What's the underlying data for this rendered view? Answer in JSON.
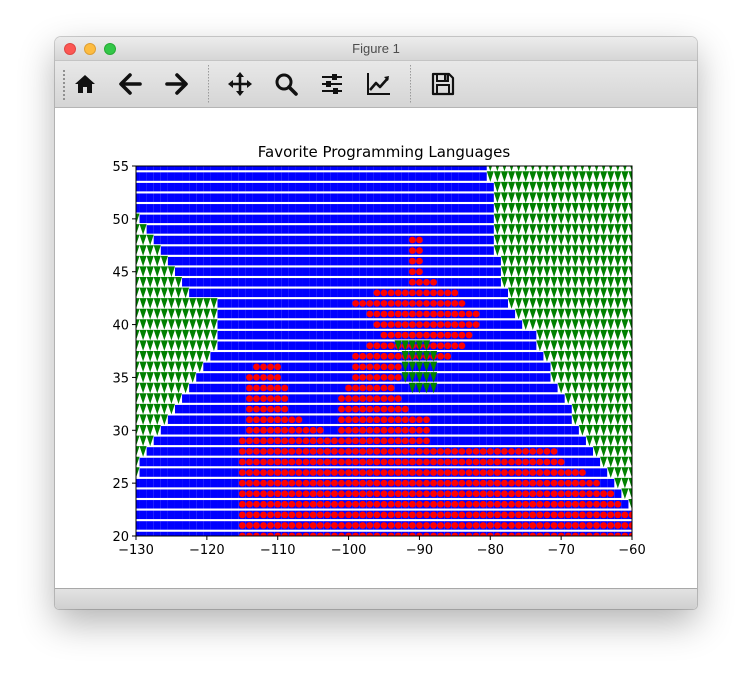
{
  "window": {
    "title": "Figure 1"
  },
  "toolbar": {
    "tools": [
      {
        "icon": "home-icon",
        "tooltip": "Reset original view"
      },
      {
        "icon": "back-arrow-icon",
        "tooltip": "Back to previous view"
      },
      {
        "icon": "forward-arrow-icon",
        "tooltip": "Forward to next view"
      },
      {
        "icon": "pan-move-icon",
        "tooltip": "Pan axes"
      },
      {
        "icon": "zoom-magnifier-icon",
        "tooltip": "Zoom to rectangle"
      },
      {
        "icon": "configure-subplots-icon",
        "tooltip": "Configure subplots"
      },
      {
        "icon": "edit-axes-icon",
        "tooltip": "Edit axis, curve and image parameters"
      },
      {
        "icon": "save-floppy-icon",
        "tooltip": "Save the figure"
      }
    ]
  },
  "colors": {
    "blue": "#0000ff",
    "red": "#ff0000",
    "green": "#008000"
  },
  "chart_data": {
    "type": "scatter",
    "title": "Favorite Programming Languages",
    "xlabel": "",
    "ylabel": "",
    "xlim": [
      -130,
      -60
    ],
    "ylim": [
      20,
      55
    ],
    "xticks": [
      -130,
      -120,
      -110,
      -100,
      -90,
      -80,
      -70,
      -60
    ],
    "yticks": [
      20,
      25,
      30,
      35,
      40,
      45,
      50,
      55
    ],
    "xtick_labels": [
      "−130",
      "−120",
      "−110",
      "−100",
      "−90",
      "−80",
      "−70",
      "−60"
    ],
    "ytick_labels": [
      "20",
      "25",
      "30",
      "35",
      "40",
      "45",
      "50",
      "55"
    ],
    "grid": false,
    "legend": null,
    "markers": {
      "blue": "square",
      "red": "circle",
      "green": "triangle-down"
    },
    "grid_step": 1,
    "description_of_layout": "dense grid classification map of three languages across longitude/latitude",
    "regions": [
      {
        "color": "blue",
        "rows": [
          {
            "y": 55,
            "x": [
              -130,
              -81
            ]
          },
          {
            "y": 54,
            "x": [
              -130,
              -81
            ]
          },
          {
            "y": 53,
            "x": [
              -130,
              -80
            ]
          },
          {
            "y": 52,
            "x": [
              -130,
              -80
            ]
          },
          {
            "y": 51,
            "x": [
              -130,
              -80
            ]
          },
          {
            "y": 50,
            "x": [
              -129,
              -80
            ]
          },
          {
            "y": 49,
            "x": [
              -128,
              -80
            ]
          },
          {
            "y": 48,
            "x": [
              -127,
              -80
            ]
          },
          {
            "y": 47,
            "x": [
              -126,
              -80
            ]
          },
          {
            "y": 46,
            "x": [
              -125,
              -79
            ]
          },
          {
            "y": 45,
            "x": [
              -124,
              -79
            ]
          },
          {
            "y": 44,
            "x": [
              -123,
              -79
            ]
          },
          {
            "y": 43,
            "x": [
              -122,
              -78
            ]
          },
          {
            "y": 42,
            "x": [
              -118,
              -78
            ]
          },
          {
            "y": 41,
            "x": [
              -118,
              -77
            ]
          },
          {
            "y": 40,
            "x": [
              -118,
              -76
            ]
          },
          {
            "y": 39,
            "x": [
              -118,
              -74
            ]
          },
          {
            "y": 38,
            "x": [
              -118,
              -74
            ]
          },
          {
            "y": 37,
            "x": [
              -119,
              -73
            ]
          },
          {
            "y": 36,
            "x": [
              -120,
              -72
            ]
          },
          {
            "y": 35,
            "x": [
              -121,
              -72
            ]
          },
          {
            "y": 34,
            "x": [
              -122,
              -71
            ]
          },
          {
            "y": 33,
            "x": [
              -123,
              -70
            ]
          },
          {
            "y": 32,
            "x": [
              -124,
              -69
            ]
          },
          {
            "y": 31,
            "x": [
              -125,
              -69
            ]
          },
          {
            "y": 30,
            "x": [
              -126,
              -68
            ]
          },
          {
            "y": 29,
            "x": [
              -127,
              -67
            ]
          },
          {
            "y": 28,
            "x": [
              -128,
              -66
            ]
          },
          {
            "y": 27,
            "x": [
              -129,
              -65
            ]
          },
          {
            "y": 26,
            "x": [
              -129,
              -64
            ]
          },
          {
            "y": 25,
            "x": [
              -130,
              -63
            ]
          },
          {
            "y": 24,
            "x": [
              -130,
              -62
            ]
          },
          {
            "y": 23,
            "x": [
              -130,
              -61
            ]
          },
          {
            "y": 22,
            "x": [
              -130,
              -60
            ]
          },
          {
            "y": 21,
            "x": [
              -130,
              -60
            ]
          },
          {
            "y": 20,
            "x": [
              -130,
              -60
            ]
          }
        ]
      },
      {
        "color": "red",
        "rows": [
          {
            "y": 48,
            "x": [
              -91,
              -90
            ]
          },
          {
            "y": 47,
            "x": [
              -91,
              -90
            ]
          },
          {
            "y": 46,
            "x": [
              -91,
              -90
            ]
          },
          {
            "y": 45,
            "x": [
              -91,
              -90
            ]
          },
          {
            "y": 44,
            "x": [
              -91,
              -88
            ]
          },
          {
            "y": 43,
            "x": [
              -96,
              -85
            ]
          },
          {
            "y": 42,
            "x": [
              -99,
              -84
            ]
          },
          {
            "y": 41,
            "x": [
              -97,
              -82
            ]
          },
          {
            "y": 40,
            "x": [
              -96,
              -82
            ]
          },
          {
            "y": 39,
            "x": [
              -95,
              -83
            ]
          },
          {
            "y": 38,
            "x": [
              -97,
              -84
            ]
          },
          {
            "y": 37,
            "x": [
              -99,
              -86
            ]
          },
          {
            "y": 36,
            "x": [
              -113,
              -110
            ]
          },
          {
            "y": 36,
            "x": [
              -99,
              -93
            ]
          },
          {
            "y": 35,
            "x": [
              -114,
              -110
            ]
          },
          {
            "y": 35,
            "x": [
              -99,
              -93
            ]
          },
          {
            "y": 34,
            "x": [
              -114,
              -109
            ]
          },
          {
            "y": 34,
            "x": [
              -100,
              -94
            ]
          },
          {
            "y": 33,
            "x": [
              -114,
              -109
            ]
          },
          {
            "y": 33,
            "x": [
              -101,
              -93
            ]
          },
          {
            "y": 32,
            "x": [
              -114,
              -109
            ]
          },
          {
            "y": 32,
            "x": [
              -101,
              -92
            ]
          },
          {
            "y": 31,
            "x": [
              -114,
              -107
            ]
          },
          {
            "y": 31,
            "x": [
              -101,
              -89
            ]
          },
          {
            "y": 30,
            "x": [
              -114,
              -104
            ]
          },
          {
            "y": 30,
            "x": [
              -101,
              -89
            ]
          },
          {
            "y": 29,
            "x": [
              -115,
              -103
            ]
          },
          {
            "y": 29,
            "x": [
              -102,
              -89
            ]
          },
          {
            "y": 28,
            "x": [
              -115,
              -71
            ]
          },
          {
            "y": 27,
            "x": [
              -115,
              -70
            ]
          },
          {
            "y": 26,
            "x": [
              -115,
              -67
            ]
          },
          {
            "y": 25,
            "x": [
              -115,
              -65
            ]
          },
          {
            "y": 24,
            "x": [
              -115,
              -63
            ]
          },
          {
            "y": 23,
            "x": [
              -115,
              -62
            ]
          },
          {
            "y": 22,
            "x": [
              -115,
              -60
            ]
          },
          {
            "y": 21,
            "x": [
              -115,
              -60
            ]
          },
          {
            "y": 20,
            "x": [
              -115,
              -60
            ]
          }
        ]
      },
      {
        "color": "green",
        "rows": [
          {
            "y": 55,
            "x": [
              -80,
              -60
            ]
          },
          {
            "y": 54,
            "x": [
              -80,
              -60
            ]
          },
          {
            "y": 53,
            "x": [
              -79,
              -60
            ]
          },
          {
            "y": 52,
            "x": [
              -79,
              -60
            ]
          },
          {
            "y": 51,
            "x": [
              -79,
              -60
            ]
          },
          {
            "y": 50,
            "x": [
              -130,
              -130
            ]
          },
          {
            "y": 50,
            "x": [
              -79,
              -60
            ]
          },
          {
            "y": 49,
            "x": [
              -130,
              -129
            ]
          },
          {
            "y": 49,
            "x": [
              -79,
              -60
            ]
          },
          {
            "y": 48,
            "x": [
              -130,
              -128
            ]
          },
          {
            "y": 48,
            "x": [
              -79,
              -60
            ]
          },
          {
            "y": 47,
            "x": [
              -130,
              -127
            ]
          },
          {
            "y": 47,
            "x": [
              -79,
              -60
            ]
          },
          {
            "y": 46,
            "x": [
              -130,
              -126
            ]
          },
          {
            "y": 46,
            "x": [
              -78,
              -60
            ]
          },
          {
            "y": 45,
            "x": [
              -130,
              -125
            ]
          },
          {
            "y": 45,
            "x": [
              -78,
              -60
            ]
          },
          {
            "y": 44,
            "x": [
              -130,
              -124
            ]
          },
          {
            "y": 44,
            "x": [
              -78,
              -60
            ]
          },
          {
            "y": 43,
            "x": [
              -130,
              -123
            ]
          },
          {
            "y": 43,
            "x": [
              -77,
              -60
            ]
          },
          {
            "y": 42,
            "x": [
              -130,
              -119
            ]
          },
          {
            "y": 42,
            "x": [
              -77,
              -60
            ]
          },
          {
            "y": 41,
            "x": [
              -130,
              -119
            ]
          },
          {
            "y": 41,
            "x": [
              -76,
              -60
            ]
          },
          {
            "y": 40,
            "x": [
              -130,
              -119
            ]
          },
          {
            "y": 40,
            "x": [
              -75,
              -60
            ]
          },
          {
            "y": 39,
            "x": [
              -130,
              -119
            ]
          },
          {
            "y": 39,
            "x": [
              -73,
              -60
            ]
          },
          {
            "y": 38,
            "x": [
              -130,
              -119
            ]
          },
          {
            "y": 38,
            "x": [
              -93,
              -89
            ]
          },
          {
            "y": 38,
            "x": [
              -73,
              -60
            ]
          },
          {
            "y": 37,
            "x": [
              -130,
              -120
            ]
          },
          {
            "y": 37,
            "x": [
              -92,
              -88
            ]
          },
          {
            "y": 37,
            "x": [
              -72,
              -60
            ]
          },
          {
            "y": 36,
            "x": [
              -130,
              -121
            ]
          },
          {
            "y": 36,
            "x": [
              -92,
              -88
            ]
          },
          {
            "y": 36,
            "x": [
              -71,
              -60
            ]
          },
          {
            "y": 35,
            "x": [
              -130,
              -122
            ]
          },
          {
            "y": 35,
            "x": [
              -92,
              -88
            ]
          },
          {
            "y": 35,
            "x": [
              -71,
              -60
            ]
          },
          {
            "y": 34,
            "x": [
              -130,
              -123
            ]
          },
          {
            "y": 34,
            "x": [
              -91,
              -88
            ]
          },
          {
            "y": 34,
            "x": [
              -70,
              -60
            ]
          },
          {
            "y": 33,
            "x": [
              -130,
              -124
            ]
          },
          {
            "y": 33,
            "x": [
              -69,
              -60
            ]
          },
          {
            "y": 32,
            "x": [
              -130,
              -125
            ]
          },
          {
            "y": 32,
            "x": [
              -68,
              -60
            ]
          },
          {
            "y": 31,
            "x": [
              -130,
              -126
            ]
          },
          {
            "y": 31,
            "x": [
              -68,
              -60
            ]
          },
          {
            "y": 30,
            "x": [
              -130,
              -127
            ]
          },
          {
            "y": 30,
            "x": [
              -67,
              -60
            ]
          },
          {
            "y": 29,
            "x": [
              -130,
              -128
            ]
          },
          {
            "y": 29,
            "x": [
              -66,
              -60
            ]
          },
          {
            "y": 28,
            "x": [
              -130,
              -129
            ]
          },
          {
            "y": 28,
            "x": [
              -65,
              -60
            ]
          },
          {
            "y": 27,
            "x": [
              -130,
              -130
            ]
          },
          {
            "y": 27,
            "x": [
              -64,
              -60
            ]
          },
          {
            "y": 26,
            "x": [
              -130,
              -130
            ]
          },
          {
            "y": 26,
            "x": [
              -63,
              -60
            ]
          },
          {
            "y": 25,
            "x": [
              -62,
              -60
            ]
          },
          {
            "y": 24,
            "x": [
              -61,
              -60
            ]
          },
          {
            "y": 23,
            "x": [
              -60,
              -60
            ]
          }
        ]
      }
    ]
  }
}
